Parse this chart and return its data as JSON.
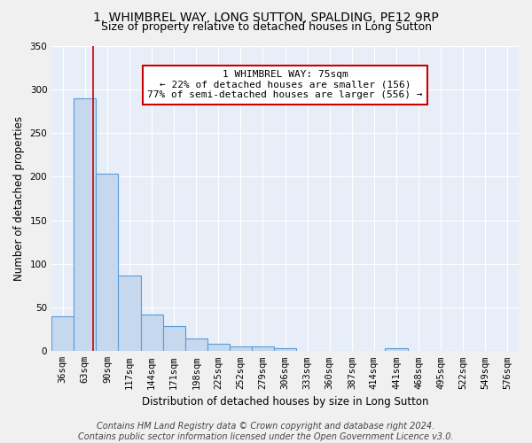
{
  "title1": "1, WHIMBREL WAY, LONG SUTTON, SPALDING, PE12 9RP",
  "title2": "Size of property relative to detached houses in Long Sutton",
  "xlabel": "Distribution of detached houses by size in Long Sutton",
  "ylabel": "Number of detached properties",
  "categories": [
    "36sqm",
    "63sqm",
    "90sqm",
    "117sqm",
    "144sqm",
    "171sqm",
    "198sqm",
    "225sqm",
    "252sqm",
    "279sqm",
    "306sqm",
    "333sqm",
    "360sqm",
    "387sqm",
    "414sqm",
    "441sqm",
    "468sqm",
    "495sqm",
    "522sqm",
    "549sqm",
    "576sqm"
  ],
  "values": [
    40,
    290,
    203,
    87,
    42,
    29,
    15,
    8,
    5,
    5,
    3,
    0,
    0,
    0,
    0,
    3,
    0,
    0,
    0,
    0,
    0
  ],
  "bar_color": "#c5d8ee",
  "bar_edge_color": "#5b9bd5",
  "red_line_x": 1.38,
  "annotation_text": "1 WHIMBREL WAY: 75sqm\n← 22% of detached houses are smaller (156)\n77% of semi-detached houses are larger (556) →",
  "annotation_box_color": "#ffffff",
  "annotation_box_edge_color": "#cc0000",
  "footer_text": "Contains HM Land Registry data © Crown copyright and database right 2024.\nContains public sector information licensed under the Open Government Licence v3.0.",
  "ylim": [
    0,
    350
  ],
  "yticks": [
    0,
    50,
    100,
    150,
    200,
    250,
    300,
    350
  ],
  "background_color": "#e8eef8",
  "grid_color": "#ffffff",
  "title1_fontsize": 10,
  "title2_fontsize": 9,
  "xlabel_fontsize": 8.5,
  "ylabel_fontsize": 8.5,
  "tick_fontsize": 7.5,
  "footer_fontsize": 7
}
